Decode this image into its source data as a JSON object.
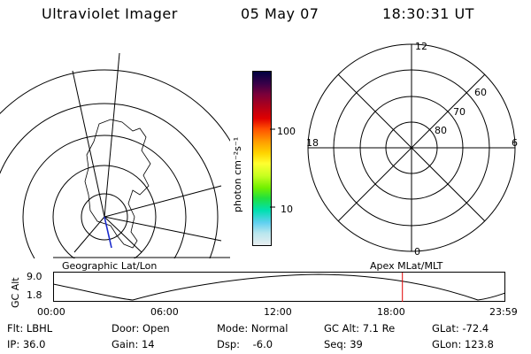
{
  "header": {
    "title": "Ultraviolet Imager",
    "date": "05 May 07",
    "time": "18:30:31 UT"
  },
  "map_labels": {
    "left": "Geographic Lat/Lon",
    "right": "Apex MLat/MLT"
  },
  "colorbar": {
    "label": "photon cm⁻²s⁻¹",
    "ticks": [
      "100",
      "10"
    ],
    "colors": [
      "#000040",
      "#3a0048",
      "#7a003a",
      "#b0001a",
      "#e00000",
      "#ff5000",
      "#ff9a00",
      "#ffd400",
      "#ffff30",
      "#c8ff20",
      "#70f000",
      "#20e040",
      "#00e0b0",
      "#60d0f0",
      "#b8e6ee",
      "#e8eef0"
    ]
  },
  "polar_plot": {
    "mlt_labels": {
      "top": "12",
      "left": "18",
      "right": "6",
      "bottom": "0"
    },
    "lat_labels": [
      "60",
      "70",
      "80"
    ]
  },
  "orbit_plot": {
    "y_axis_label": "GC Alt",
    "y_ticks": [
      "9.0",
      "1.8"
    ],
    "x_ticks": [
      "00:00",
      "06:00",
      "12:00",
      "18:00",
      "23:59"
    ],
    "current_time_fraction": 0.773,
    "marker_color": "#e00000"
  },
  "info": {
    "row1": {
      "filter": "Flt: LBHL",
      "door": "Door: Open",
      "mode": "Mode: Normal",
      "gc_alt": "GC Alt: 7.1 Re",
      "glat": "GLat: -72.4"
    },
    "row2": {
      "ip": "IP: 36.0",
      "gain": "Gain: 14",
      "dsp": "Dsp:    -6.0",
      "seq": "Seq: 39",
      "glon": "GLon: 123.8"
    }
  }
}
